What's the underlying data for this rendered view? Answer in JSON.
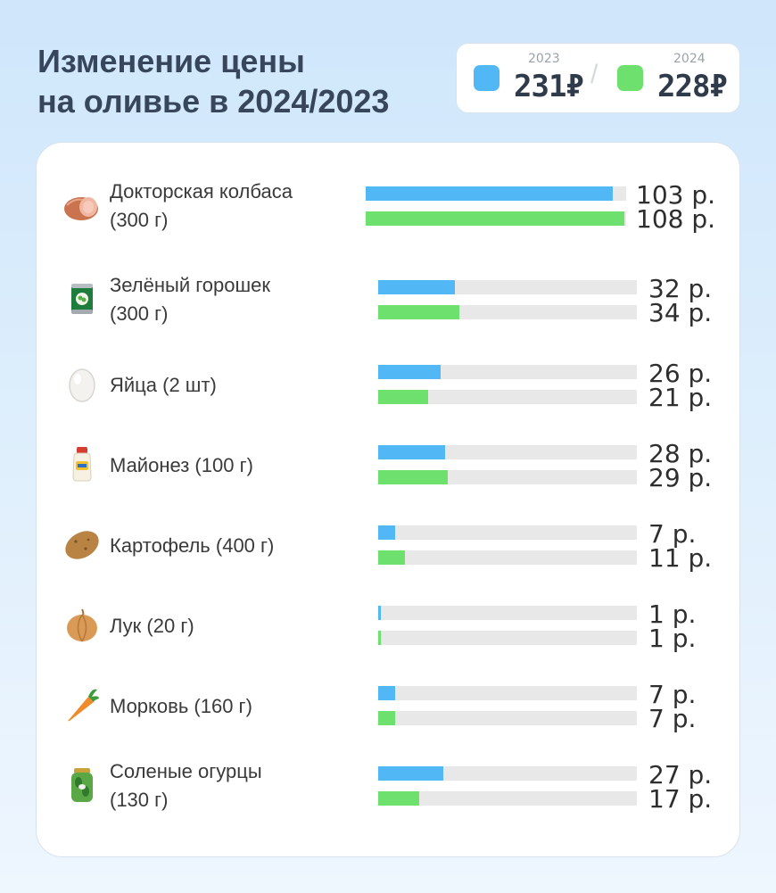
{
  "title_line1": "Изменение цены",
  "title_line2": "на оливье в 2024/2023",
  "legend": {
    "year_2023": "2023",
    "total_2023": "231₽",
    "separator": "/",
    "year_2024": "2024",
    "total_2024": "228₽"
  },
  "colors": {
    "y2023": "#52b8f5",
    "y2024": "#6ee06d",
    "track": "#e8e8e8"
  },
  "chart_data": {
    "type": "bar",
    "orientation": "horizontal",
    "title": "Изменение цены на оливье в 2024/2023",
    "unit": "р.",
    "scale_max": 108,
    "series": [
      {
        "name": "2023",
        "values": [
          103,
          32,
          26,
          28,
          7,
          1,
          7,
          27
        ]
      },
      {
        "name": "2024",
        "values": [
          108,
          34,
          21,
          29,
          11,
          1,
          7,
          17
        ]
      }
    ],
    "items": [
      {
        "line1": "Докторская колбаса",
        "line2": "(300 г)",
        "icon": "sausage-icon",
        "v2023": 103,
        "v2024": 108,
        "t2023": "103 р.",
        "t2024": "108 р."
      },
      {
        "line1": "Зелёный горошек",
        "line2": "(300 г)",
        "icon": "peas-can-icon",
        "v2023": 32,
        "v2024": 34,
        "t2023": "32 р.",
        "t2024": "34 р."
      },
      {
        "line1": "Яйца (2 шт)",
        "line2": "",
        "icon": "egg-icon",
        "v2023": 26,
        "v2024": 21,
        "t2023": "26 р.",
        "t2024": "21 р."
      },
      {
        "line1": "Майонез (100 г)",
        "line2": "",
        "icon": "mayonnaise-icon",
        "v2023": 28,
        "v2024": 29,
        "t2023": "28 р.",
        "t2024": "29 р."
      },
      {
        "line1": "Картофель (400 г)",
        "line2": "",
        "icon": "potato-icon",
        "v2023": 7,
        "v2024": 11,
        "t2023": "7 р.",
        "t2024": "11 р."
      },
      {
        "line1": "Лук (20 г)",
        "line2": "",
        "icon": "onion-icon",
        "v2023": 1,
        "v2024": 1,
        "t2023": "1 р.",
        "t2024": "1 р."
      },
      {
        "line1": "Морковь (160 г)",
        "line2": "",
        "icon": "carrot-icon",
        "v2023": 7,
        "v2024": 7,
        "t2023": "7 р.",
        "t2024": "7 р."
      },
      {
        "line1": "Соленые огурцы",
        "line2": "(130 г)",
        "icon": "pickles-jar-icon",
        "v2023": 27,
        "v2024": 17,
        "t2023": "27 р.",
        "t2024": "17 р."
      }
    ]
  }
}
